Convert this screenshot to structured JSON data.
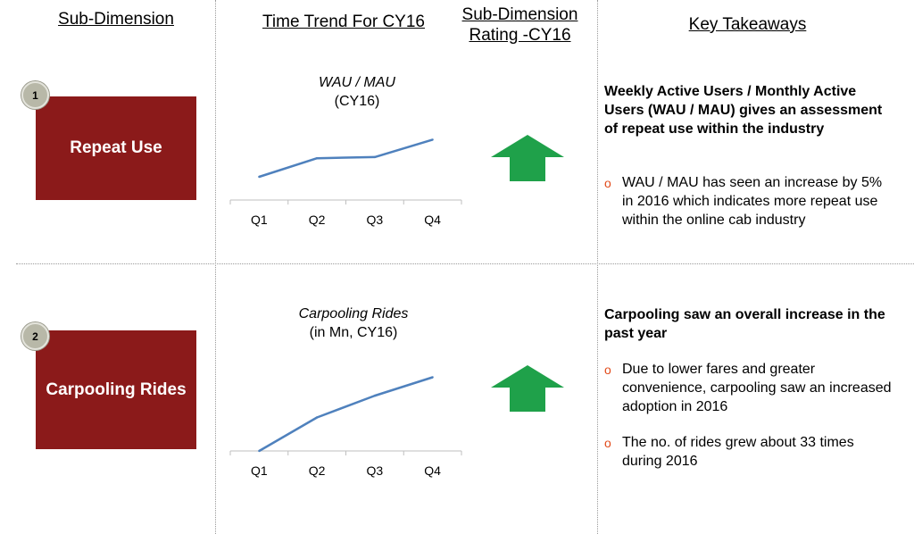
{
  "headers": {
    "col1": "Sub-Dimension",
    "col2": "Time Trend For CY16",
    "col3_line1": "Sub-Dimension",
    "col3_line2": "Rating -CY16",
    "col4": "Key Takeaways"
  },
  "rows": [
    {
      "badge": "1",
      "label": "Repeat Use",
      "chart_title": "WAU / MAU",
      "chart_subtitle": "(CY16)",
      "rating": "up",
      "takeaway_head": "Weekly Active Users / Monthly Active Users (WAU / MAU) gives an assessment of repeat use within the industry",
      "bullets": [
        "WAU / MAU has seen an increase by 5% in 2016 which indicates more repeat use within the online cab industry"
      ]
    },
    {
      "badge": "2",
      "label": "Carpooling Rides",
      "chart_title": "Carpooling Rides",
      "chart_subtitle": "(in Mn, CY16)",
      "rating": "up",
      "takeaway_head": "Carpooling saw an overall increase in the past year",
      "bullets": [
        "Due to lower fares and greater convenience, carpooling saw an increased adoption in 2016",
        "The no. of rides grew about 33 times during 2016"
      ]
    }
  ],
  "colors": {
    "box": "#8b1a1a",
    "line": "#4f81bd",
    "arrow": "#1fa14a",
    "bullet": "#e24a1a"
  },
  "chart_data": [
    {
      "type": "line",
      "title": "WAU / MAU",
      "subtitle": "(CY16)",
      "categories": [
        "Q1",
        "Q2",
        "Q3",
        "Q4"
      ],
      "values": [
        1.0,
        1.8,
        1.85,
        2.6
      ],
      "ylim": [
        0,
        4
      ],
      "grid": false
    },
    {
      "type": "line",
      "title": "Carpooling Rides",
      "subtitle": "(in Mn, CY16)",
      "categories": [
        "Q1",
        "Q2",
        "Q3",
        "Q4"
      ],
      "values": [
        0.0,
        1.0,
        1.65,
        2.2
      ],
      "ylim": [
        0,
        2.8
      ],
      "grid": false
    }
  ]
}
